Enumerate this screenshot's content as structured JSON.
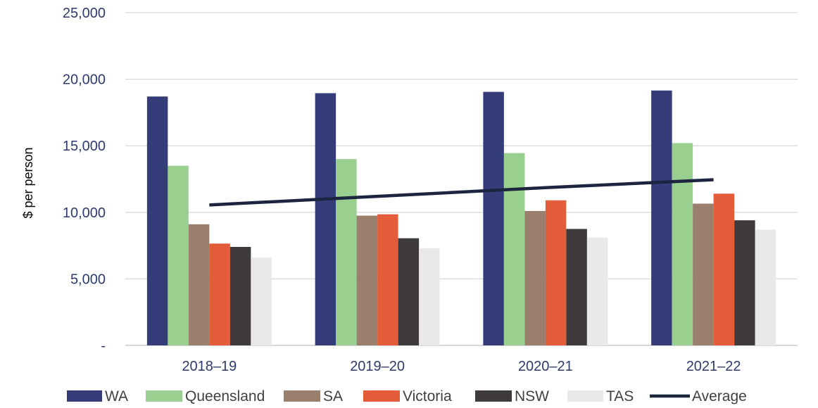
{
  "chart_data": {
    "type": "bar",
    "ylabel": "$ per person",
    "ylim": [
      0,
      25000
    ],
    "yticks": [
      0,
      5000,
      10000,
      15000,
      20000,
      25000
    ],
    "ytick_labels": [
      "-",
      "5,000",
      "10,000",
      "15,000",
      "20,000",
      "25,000"
    ],
    "categories": [
      "2018–19",
      "2019–20",
      "2020–21",
      "2021–22"
    ],
    "grid": true,
    "legend_position": "bottom",
    "series": [
      {
        "name": "WA",
        "color": "#343d7a",
        "values": [
          18700,
          18950,
          19050,
          19150
        ]
      },
      {
        "name": "Queensland",
        "color": "#99d08f",
        "values": [
          13500,
          14000,
          14450,
          15200
        ]
      },
      {
        "name": "SA",
        "color": "#9a7f6d",
        "values": [
          9100,
          9750,
          10100,
          10650
        ]
      },
      {
        "name": "Victoria",
        "color": "#e35d3a",
        "values": [
          7650,
          9850,
          10900,
          11400
        ]
      },
      {
        "name": "NSW",
        "color": "#3f3a3c",
        "values": [
          7400,
          8050,
          8750,
          9400
        ]
      },
      {
        "name": "TAS",
        "color": "#e9e9ec",
        "values": [
          6600,
          7300,
          8100,
          8700
        ]
      }
    ],
    "line_series": {
      "name": "Average",
      "color": "#1d2440",
      "values": [
        10550,
        11200,
        11850,
        12450
      ]
    }
  }
}
